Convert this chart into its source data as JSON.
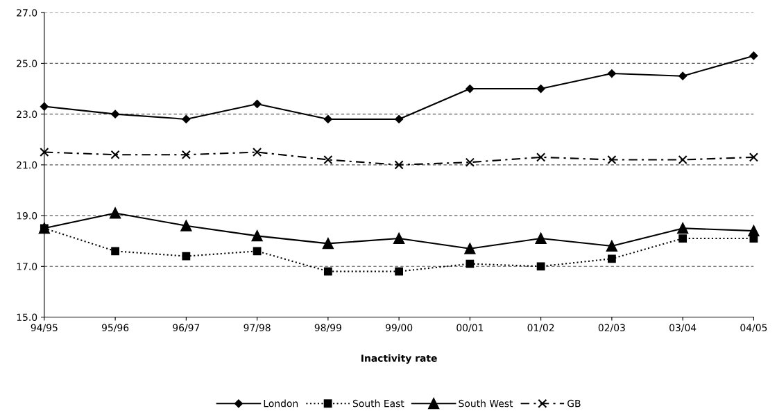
{
  "chart_data": {
    "type": "line",
    "xlabel": "Inactivity rate",
    "categories": [
      "94/95",
      "95/96",
      "96/97",
      "97/98",
      "98/99",
      "99/00",
      "00/01",
      "01/02",
      "02/03",
      "03/04",
      "04/05"
    ],
    "series": [
      {
        "name": "London",
        "color": "#000000",
        "marker": "diamond",
        "line_style": "solid",
        "values": [
          23.3,
          23.0,
          22.8,
          23.4,
          22.8,
          22.8,
          24.0,
          24.0,
          24.6,
          24.5,
          25.3
        ]
      },
      {
        "name": "South East",
        "color": "#000000",
        "marker": "square",
        "line_style": "dotted",
        "values": [
          18.5,
          17.6,
          17.4,
          17.6,
          16.8,
          16.8,
          17.1,
          17.0,
          17.3,
          18.1,
          18.1
        ]
      },
      {
        "name": "South West",
        "color": "#000000",
        "marker": "triangle",
        "line_style": "solid",
        "values": [
          18.5,
          19.1,
          18.6,
          18.2,
          17.9,
          18.1,
          17.7,
          18.1,
          17.8,
          18.5,
          18.4
        ]
      },
      {
        "name": "GB",
        "color": "#000000",
        "marker": "cross",
        "line_style": "dashed",
        "values": [
          21.5,
          21.4,
          21.4,
          21.5,
          21.2,
          21.0,
          21.1,
          21.3,
          21.2,
          21.2,
          21.3
        ]
      }
    ],
    "ylim": [
      15,
      27
    ],
    "yticks": [
      {
        "value": 15,
        "label": "15.0"
      },
      {
        "value": 17,
        "label": "17.0"
      },
      {
        "value": 19,
        "label": "19.0"
      },
      {
        "value": 21,
        "label": "21.0"
      },
      {
        "value": 23,
        "label": "23.0"
      },
      {
        "value": 25,
        "label": "25.0"
      },
      {
        "value": 27,
        "label": "27.0"
      }
    ],
    "grid": "y",
    "legend": "bottom"
  }
}
